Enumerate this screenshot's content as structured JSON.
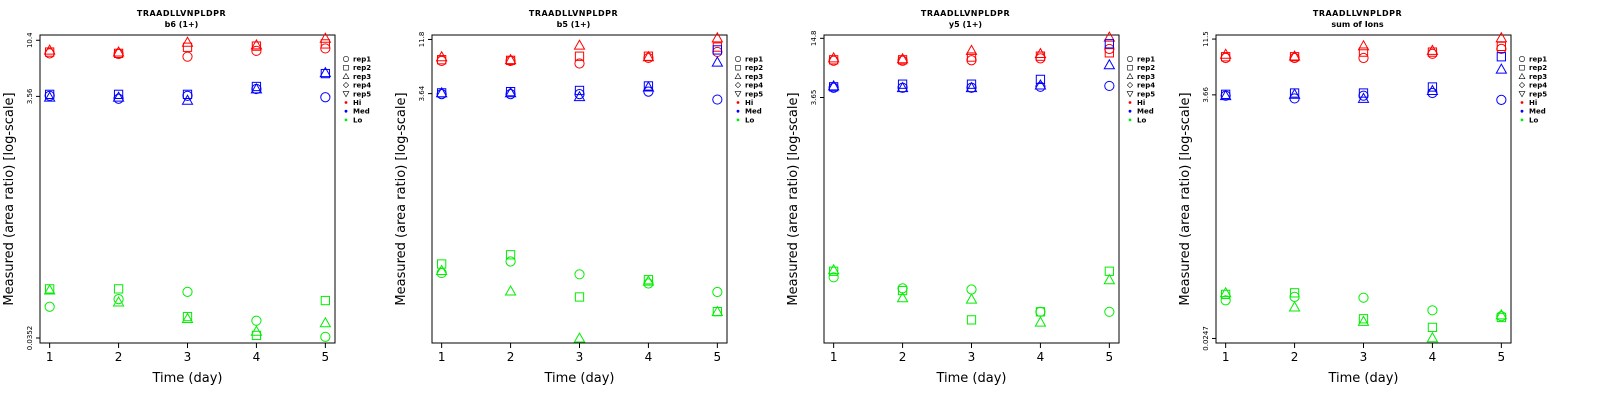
{
  "colors": {
    "Hi": "#ff0000",
    "Med": "#0000ff",
    "Lo": "#00ee00"
  },
  "legend": [
    {
      "label": "rep1",
      "kind": "shape",
      "shape": "circle"
    },
    {
      "label": "rep2",
      "kind": "shape",
      "shape": "square"
    },
    {
      "label": "rep3",
      "kind": "shape",
      "shape": "triangle-up"
    },
    {
      "label": "rep4",
      "kind": "shape",
      "shape": "diamond"
    },
    {
      "label": "rep5",
      "kind": "shape",
      "shape": "triangle-down"
    },
    {
      "label": "Hi",
      "kind": "color",
      "color": "#ff0000"
    },
    {
      "label": "Med",
      "kind": "color",
      "color": "#0000ff"
    },
    {
      "label": "Lo",
      "kind": "color",
      "color": "#00ee00"
    }
  ],
  "chart_data": [
    {
      "type": "scatter",
      "title": "TRAADLLVNPLDPR",
      "subtitle": "b6 (1+)",
      "xlabel": "Time (day)",
      "ylabel": "Measured (area ratio) [log-scale]",
      "x_ticks": [
        1,
        2,
        3,
        4,
        5
      ],
      "y_scale": "log",
      "y_ticks": [
        0.0352,
        3.56,
        10.4
      ],
      "ylim": [
        0.032,
        11.5
      ],
      "series": [
        {
          "group": "Hi",
          "shape": "circle",
          "x": [
            1,
            2,
            3,
            4,
            5
          ],
          "y": [
            8.1,
            8.0,
            7.6,
            8.5,
            8.9
          ]
        },
        {
          "group": "Hi",
          "shape": "square",
          "x": [
            1,
            2,
            3,
            4,
            5
          ],
          "y": [
            8.3,
            8.1,
            9.1,
            9.3,
            9.7
          ]
        },
        {
          "group": "Hi",
          "shape": "triangle-up",
          "x": [
            1,
            2,
            3,
            4,
            5
          ],
          "y": [
            8.6,
            8.3,
            10.0,
            9.5,
            10.8
          ]
        },
        {
          "group": "Med",
          "shape": "circle",
          "x": [
            1,
            2,
            3,
            4,
            5
          ],
          "y": [
            3.6,
            3.4,
            3.6,
            4.1,
            3.5
          ]
        },
        {
          "group": "Med",
          "shape": "square",
          "x": [
            1,
            2,
            3,
            4,
            5
          ],
          "y": [
            3.7,
            3.7,
            3.7,
            4.3,
            5.5
          ]
        },
        {
          "group": "Med",
          "shape": "triangle-up",
          "x": [
            1,
            2,
            3,
            4,
            5
          ],
          "y": [
            3.5,
            3.5,
            3.3,
            4.1,
            5.6
          ]
        },
        {
          "group": "Lo",
          "shape": "circle",
          "x": [
            1,
            2,
            3,
            4,
            5
          ],
          "y": [
            0.064,
            0.074,
            0.085,
            0.049,
            0.036
          ]
        },
        {
          "group": "Lo",
          "shape": "square",
          "x": [
            1,
            2,
            3,
            4,
            5
          ],
          "y": [
            0.09,
            0.09,
            0.053,
            0.037,
            0.072
          ]
        },
        {
          "group": "Lo",
          "shape": "triangle-up",
          "x": [
            1,
            2,
            3,
            4,
            5
          ],
          "y": [
            0.088,
            0.07,
            0.051,
            0.04,
            0.047
          ]
        }
      ]
    },
    {
      "type": "scatter",
      "title": "TRAADLLVNPLDPR",
      "subtitle": "b5 (1+)",
      "xlabel": "Time (day)",
      "ylabel": "Measured (area ratio) [log-scale]",
      "x_ticks": [
        1,
        2,
        3,
        4,
        5
      ],
      "y_scale": "log",
      "y_ticks": [
        3.64,
        11.8
      ],
      "ylim": [
        0.0162,
        13.0
      ],
      "series": [
        {
          "group": "Hi",
          "shape": "circle",
          "x": [
            1,
            2,
            3,
            4,
            5
          ],
          "y": [
            7.4,
            7.4,
            7.0,
            7.9,
            9.0
          ]
        },
        {
          "group": "Hi",
          "shape": "square",
          "x": [
            1,
            2,
            3,
            4,
            5
          ],
          "y": [
            7.6,
            7.5,
            8.2,
            8.2,
            10.0
          ]
        },
        {
          "group": "Hi",
          "shape": "triangle-up",
          "x": [
            1,
            2,
            3,
            4,
            5
          ],
          "y": [
            8.1,
            7.6,
            10.4,
            8.1,
            12.2
          ]
        },
        {
          "group": "Med",
          "shape": "circle",
          "x": [
            1,
            2,
            3,
            4,
            5
          ],
          "y": [
            3.6,
            3.6,
            3.6,
            3.8,
            3.2
          ]
        },
        {
          "group": "Med",
          "shape": "square",
          "x": [
            1,
            2,
            3,
            4,
            5
          ],
          "y": [
            3.7,
            3.8,
            3.9,
            4.3,
            9.4
          ]
        },
        {
          "group": "Med",
          "shape": "triangle-up",
          "x": [
            1,
            2,
            3,
            4,
            5
          ],
          "y": [
            3.7,
            3.7,
            3.4,
            4.2,
            7.2
          ]
        },
        {
          "group": "Lo",
          "shape": "circle",
          "x": [
            1,
            2,
            3,
            4,
            5
          ],
          "y": [
            0.074,
            0.095,
            0.072,
            0.059,
            0.049
          ]
        },
        {
          "group": "Lo",
          "shape": "square",
          "x": [
            1,
            2,
            3,
            4,
            5
          ],
          "y": [
            0.09,
            0.11,
            0.044,
            0.064,
            0.032
          ]
        },
        {
          "group": "Lo",
          "shape": "triangle-up",
          "x": [
            1,
            2,
            3,
            4,
            5
          ],
          "y": [
            0.078,
            0.05,
            0.018,
            0.062,
            0.032
          ]
        }
      ]
    },
    {
      "type": "scatter",
      "title": "TRAADLLVNPLDPR",
      "subtitle": "y5 (1+)",
      "xlabel": "Time (day)",
      "ylabel": "Measured (area ratio) [log-scale]",
      "x_ticks": [
        1,
        2,
        3,
        4,
        5
      ],
      "y_scale": "log",
      "y_ticks": [
        3.65,
        14.8
      ],
      "ylim": [
        0.011,
        16.0
      ],
      "series": [
        {
          "group": "Hi",
          "shape": "circle",
          "x": [
            1,
            2,
            3,
            4,
            5
          ],
          "y": [
            8.7,
            8.7,
            8.8,
            9.2,
            11.5
          ]
        },
        {
          "group": "Hi",
          "shape": "square",
          "x": [
            1,
            2,
            3,
            4,
            5
          ],
          "y": [
            8.9,
            8.9,
            9.5,
            9.7,
            10.5
          ]
        },
        {
          "group": "Hi",
          "shape": "triangle-up",
          "x": [
            1,
            2,
            3,
            4,
            5
          ],
          "y": [
            9.3,
            9.1,
            11.1,
            10.3,
            15.2
          ]
        },
        {
          "group": "Med",
          "shape": "circle",
          "x": [
            1,
            2,
            3,
            4,
            5
          ],
          "y": [
            4.6,
            4.6,
            4.6,
            4.7,
            4.8
          ]
        },
        {
          "group": "Med",
          "shape": "square",
          "x": [
            1,
            2,
            3,
            4,
            5
          ],
          "y": [
            4.7,
            5.0,
            5.0,
            5.6,
            13.0
          ]
        },
        {
          "group": "Med",
          "shape": "triangle-up",
          "x": [
            1,
            2,
            3,
            4,
            5
          ],
          "y": [
            4.8,
            4.6,
            4.6,
            4.9,
            7.9
          ]
        },
        {
          "group": "Lo",
          "shape": "circle",
          "x": [
            1,
            2,
            3,
            4,
            5
          ],
          "y": [
            0.052,
            0.04,
            0.039,
            0.023,
            0.023
          ]
        },
        {
          "group": "Lo",
          "shape": "square",
          "x": [
            1,
            2,
            3,
            4,
            5
          ],
          "y": [
            0.06,
            0.038,
            0.019,
            0.023,
            0.06
          ]
        },
        {
          "group": "Lo",
          "shape": "triangle-up",
          "x": [
            1,
            2,
            3,
            4,
            5
          ],
          "y": [
            0.062,
            0.032,
            0.031,
            0.018,
            0.049
          ]
        }
      ]
    },
    {
      "type": "scatter",
      "title": "TRAADLLVNPLDPR",
      "subtitle": "sum of Ions",
      "xlabel": "Time (day)",
      "ylabel": "Measured (area ratio) [log-scale]",
      "x_ticks": [
        1,
        2,
        3,
        4,
        5
      ],
      "y_scale": "log",
      "y_ticks": [
        0.0247,
        3.66,
        11.5
      ],
      "ylim": [
        0.0225,
        12.5
      ],
      "series": [
        {
          "group": "Hi",
          "shape": "circle",
          "x": [
            1,
            2,
            3,
            4,
            5
          ],
          "y": [
            7.8,
            7.8,
            7.8,
            8.5,
            9.4
          ]
        },
        {
          "group": "Hi",
          "shape": "square",
          "x": [
            1,
            2,
            3,
            4,
            5
          ],
          "y": [
            8.0,
            8.0,
            8.8,
            8.8,
            9.9
          ]
        },
        {
          "group": "Hi",
          "shape": "triangle-up",
          "x": [
            1,
            2,
            3,
            4,
            5
          ],
          "y": [
            8.4,
            8.1,
            10.0,
            9.1,
            11.8
          ]
        },
        {
          "group": "Med",
          "shape": "circle",
          "x": [
            1,
            2,
            3,
            4,
            5
          ],
          "y": [
            3.6,
            3.4,
            3.6,
            3.8,
            3.3
          ]
        },
        {
          "group": "Med",
          "shape": "square",
          "x": [
            1,
            2,
            3,
            4,
            5
          ],
          "y": [
            3.7,
            3.8,
            3.8,
            4.3,
            8.0
          ]
        },
        {
          "group": "Med",
          "shape": "triangle-up",
          "x": [
            1,
            2,
            3,
            4,
            5
          ],
          "y": [
            3.6,
            3.7,
            3.4,
            4.0,
            6.2
          ]
        },
        {
          "group": "Lo",
          "shape": "circle",
          "x": [
            1,
            2,
            3,
            4,
            5
          ],
          "y": [
            0.054,
            0.058,
            0.057,
            0.044,
            0.039
          ]
        },
        {
          "group": "Lo",
          "shape": "square",
          "x": [
            1,
            2,
            3,
            4,
            5
          ],
          "y": [
            0.061,
            0.063,
            0.037,
            0.031,
            0.038
          ]
        },
        {
          "group": "Lo",
          "shape": "triangle-up",
          "x": [
            1,
            2,
            3,
            4,
            5
          ],
          "y": [
            0.063,
            0.047,
            0.035,
            0.025,
            0.04
          ]
        }
      ]
    }
  ]
}
